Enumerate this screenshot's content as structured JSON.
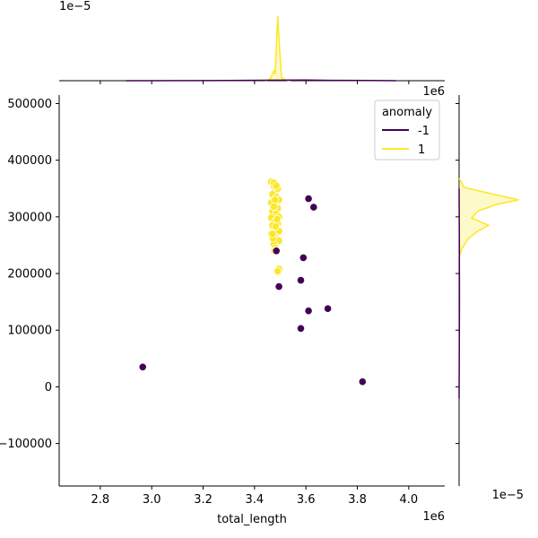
{
  "chart_data": {
    "type": "scatter",
    "title": "",
    "xlabel": "total_length",
    "ylabel": "",
    "x_offset_label": "1e6",
    "y_offset_label": "1e6",
    "top_marginal_offset_label": "1e−5",
    "right_marginal_offset_label": "1e−5",
    "xlim": [
      2.64,
      4.14
    ],
    "ylim": [
      -175000,
      515000
    ],
    "x_ticks": [
      2.8,
      3.0,
      3.2,
      3.4,
      3.6,
      3.8,
      4.0
    ],
    "x_tick_labels": [
      "2.8",
      "3.0",
      "3.2",
      "3.4",
      "3.6",
      "3.8",
      "4.0"
    ],
    "y_ticks": [
      -100000,
      0,
      100000,
      200000,
      300000,
      400000,
      500000
    ],
    "y_tick_labels": [
      "−100000",
      "0",
      "100000",
      "200000",
      "300000",
      "400000",
      "500000"
    ],
    "grid": false,
    "legend": {
      "title": "anomaly",
      "placement": "top-right",
      "entries": [
        {
          "label": "-1",
          "color": "#440154"
        },
        {
          "label": "1",
          "color": "#fde725"
        }
      ]
    },
    "series": [
      {
        "name": "-1",
        "color": "#440154",
        "points": [
          [
            2.965,
            35000
          ],
          [
            3.495,
            177000
          ],
          [
            3.58,
            188000
          ],
          [
            3.59,
            228000
          ],
          [
            3.58,
            103000
          ],
          [
            3.61,
            134000
          ],
          [
            3.685,
            138000
          ],
          [
            3.61,
            332000
          ],
          [
            3.63,
            317000
          ],
          [
            3.82,
            9000
          ],
          [
            3.485,
            240000
          ]
        ]
      },
      {
        "name": "1",
        "color": "#fde725",
        "points": [
          [
            3.465,
            362000
          ],
          [
            3.475,
            355000
          ],
          [
            3.48,
            345000
          ],
          [
            3.49,
            350000
          ],
          [
            3.47,
            340000
          ],
          [
            3.485,
            335000
          ],
          [
            3.495,
            330000
          ],
          [
            3.465,
            325000
          ],
          [
            3.48,
            320000
          ],
          [
            3.49,
            315000
          ],
          [
            3.47,
            310000
          ],
          [
            3.485,
            305000
          ],
          [
            3.495,
            300000
          ],
          [
            3.465,
            298000
          ],
          [
            3.48,
            292000
          ],
          [
            3.49,
            288000
          ],
          [
            3.47,
            285000
          ],
          [
            3.485,
            280000
          ],
          [
            3.495,
            275000
          ],
          [
            3.465,
            270000
          ],
          [
            3.48,
            265000
          ],
          [
            3.49,
            260000
          ],
          [
            3.495,
            258000
          ],
          [
            3.475,
            252000
          ],
          [
            3.48,
            245000
          ],
          [
            3.495,
            208000
          ],
          [
            3.49,
            204000
          ],
          [
            3.475,
            360000
          ],
          [
            3.485,
            355000
          ],
          [
            3.48,
            330000
          ],
          [
            3.475,
            318000
          ],
          [
            3.488,
            296000
          ],
          [
            3.482,
            283000
          ],
          [
            3.472,
            262000
          ],
          [
            3.478,
            240000
          ],
          [
            3.47,
            270000
          ]
        ]
      }
    ],
    "marginal_x": {
      "series": [
        {
          "name": "1",
          "color": "#fde725",
          "x": [
            3.44,
            3.46,
            3.475,
            3.48,
            3.49,
            3.5,
            3.505,
            3.52,
            3.54
          ],
          "density": [
            0,
            0.02,
            0.15,
            0.1,
            1.0,
            0.35,
            0.05,
            0.01,
            0
          ]
        },
        {
          "name": "-1",
          "color": "#440154",
          "x": [
            2.9,
            3.2,
            3.5,
            3.6,
            3.7,
            3.85,
            3.95
          ],
          "density": [
            0,
            0.002,
            0.008,
            0.01,
            0.006,
            0.003,
            0
          ]
        }
      ]
    },
    "marginal_y": {
      "series": [
        {
          "name": "1",
          "color": "#fde725",
          "y": [
            230000,
            245000,
            262000,
            275000,
            285000,
            298000,
            310000,
            322000,
            330000,
            340000,
            352000,
            368000
          ],
          "density": [
            0,
            0.05,
            0.15,
            0.3,
            0.47,
            0.2,
            0.3,
            0.6,
            0.95,
            0.55,
            0.08,
            0
          ]
        },
        {
          "name": "-1",
          "color": "#440154",
          "y": [
            -20000,
            50000,
            150000,
            250000,
            350000
          ],
          "density": [
            0,
            0.003,
            0.005,
            0.004,
            0
          ]
        }
      ]
    }
  }
}
